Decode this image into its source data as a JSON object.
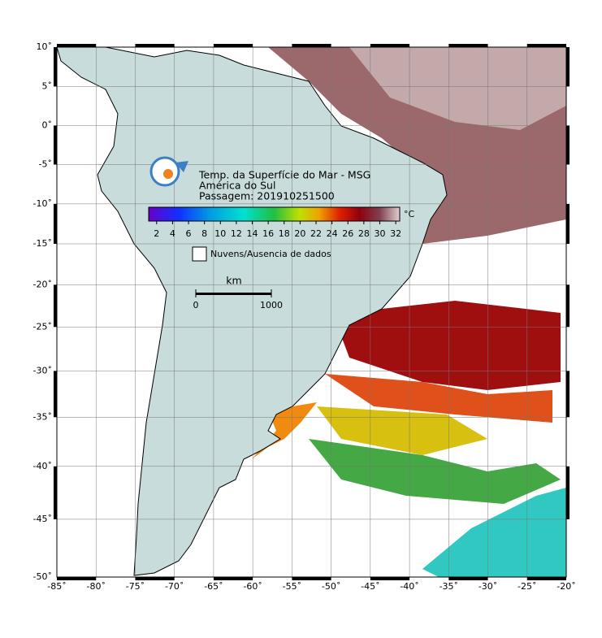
{
  "map": {
    "lon_ticks": [
      {
        "value": -85,
        "label": "-85˚"
      },
      {
        "value": -80,
        "label": "-80˚"
      },
      {
        "value": -75,
        "label": "-75˚"
      },
      {
        "value": -70,
        "label": "-70˚"
      },
      {
        "value": -65,
        "label": "-65˚"
      },
      {
        "value": -60,
        "label": "-60˚"
      },
      {
        "value": -55,
        "label": "-55˚"
      },
      {
        "value": -50,
        "label": "-50˚"
      },
      {
        "value": -45,
        "label": "-45˚"
      },
      {
        "value": -40,
        "label": "-40˚"
      },
      {
        "value": -35,
        "label": "-35˚"
      },
      {
        "value": -30,
        "label": "-30˚"
      },
      {
        "value": -25,
        "label": "-25˚"
      },
      {
        "value": -20,
        "label": "-20˚"
      }
    ],
    "lat_ticks": [
      {
        "value": 10,
        "label": "10˚"
      },
      {
        "value": 5,
        "label": "5˚"
      },
      {
        "value": 0,
        "label": "0˚"
      },
      {
        "value": -5,
        "label": "-5˚"
      },
      {
        "value": -10,
        "label": "-10˚"
      },
      {
        "value": -15,
        "label": "-15˚"
      },
      {
        "value": -20,
        "label": "-20˚"
      },
      {
        "value": -25,
        "label": "-25˚"
      },
      {
        "value": -30,
        "label": "-30˚"
      },
      {
        "value": -35,
        "label": "-35˚"
      },
      {
        "value": -40,
        "label": "-40˚"
      },
      {
        "value": -45,
        "label": "-45˚"
      },
      {
        "value": -50,
        "label": "-50˚"
      }
    ]
  },
  "title": {
    "line1": "Temp. da Superfície do Mar - MSG",
    "line2": "América do Sul",
    "line3": "Passagem: 201910251500"
  },
  "colorbar": {
    "unit": "°C",
    "lim": [
      1,
      32.5
    ],
    "ticks": [
      2,
      4,
      6,
      8,
      10,
      12,
      14,
      16,
      18,
      20,
      22,
      24,
      26,
      28,
      30,
      32
    ]
  },
  "legend": {
    "label": "Nuvens/Ausencia de dados"
  },
  "scale_bar": {
    "unit": "km",
    "ticks": [
      0,
      1000
    ]
  }
}
